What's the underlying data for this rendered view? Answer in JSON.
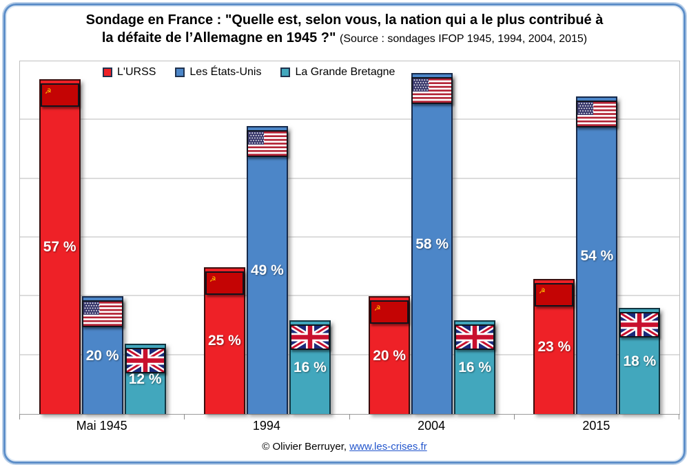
{
  "title": {
    "line1": "Sondage en France : \"Quelle est, selon vous, la nation qui a le plus contribué à",
    "line2_bold": "la défaite de l’Allemagne en 1945 ?\"",
    "line2_source": "(Source : sondages IFOP 1945, 1994, 2004, 2015)"
  },
  "chart_data": {
    "type": "bar",
    "title": "Sondage en France : \"Quelle est, selon vous, la nation qui a le plus contribué à la défaite de l’Allemagne en 1945 ?\"",
    "subtitle": "(Source : sondages IFOP 1945, 1994, 2004, 2015)",
    "categories": [
      "Mai 1945",
      "1994",
      "2004",
      "2015"
    ],
    "series": [
      {
        "name": "L'URSS",
        "color": "#ee2127",
        "border_color": "#3a0d0d",
        "flag_icon": "ussr-flag",
        "values": [
          57,
          25,
          20,
          23
        ]
      },
      {
        "name": "Les États-Unis",
        "color": "#4c86c8",
        "border_color": "#16294a",
        "flag_icon": "us-flag",
        "values": [
          20,
          49,
          58,
          54
        ]
      },
      {
        "name": "La Grande Bretagne",
        "color": "#42a7bd",
        "border_color": "#123540",
        "flag_icon": "uk-flag",
        "values": [
          12,
          16,
          16,
          18
        ]
      }
    ],
    "value_suffix": " %",
    "ylim": [
      0,
      60
    ],
    "gridline_values": [
      10,
      20,
      30,
      40,
      50
    ],
    "grid": "horizontal",
    "legend_position": "top-left-inside",
    "flag_colors": {
      "ussr_red": "#c40404",
      "ussr_gold": "#ffc400",
      "us_red": "#b22234",
      "us_blue": "#3c3b6e",
      "us_white": "#ffffff",
      "uk_blue": "#1a2a7a",
      "uk_red": "#c8102e",
      "uk_white": "#ffffff"
    }
  },
  "footer": {
    "credit": "© Olivier Berruyer, ",
    "link": "www.les-crises.fr"
  }
}
